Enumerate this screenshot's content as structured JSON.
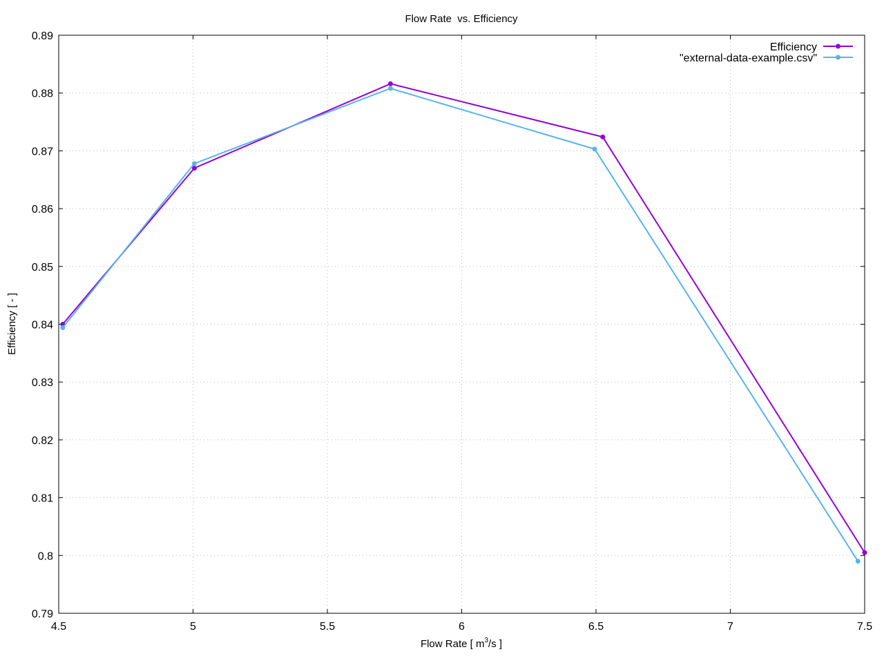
{
  "chart_data": {
    "type": "line",
    "title": "Flow Rate  vs. Efficiency",
    "xlabel": "Flow Rate [ m",
    "xlabel_sup": "3",
    "xlabel_end": "/s ]",
    "ylabel": "Efficiency [ - ]",
    "xlim": [
      4.5,
      7.5
    ],
    "ylim": [
      0.79,
      0.89
    ],
    "x_ticks": [
      "4.5",
      "5",
      "5.5",
      "6",
      "6.5",
      "7",
      "7.5"
    ],
    "y_ticks": [
      "0.79",
      "0.8",
      "0.81",
      "0.82",
      "0.83",
      "0.84",
      "0.85",
      "0.86",
      "0.87",
      "0.88",
      "0.89"
    ],
    "grid": true,
    "legend_position": "top-right",
    "series": [
      {
        "name": "Efficiency",
        "color": "#9400d3",
        "x": [
          4.515,
          5.005,
          5.735,
          6.525,
          7.5
        ],
        "y": [
          0.84,
          0.867,
          0.8816,
          0.8724,
          0.8005
        ]
      },
      {
        "name": "\"external-data-example.csv\"",
        "color": "#56b4e9",
        "x": [
          4.515,
          5.005,
          5.735,
          6.495,
          7.475
        ],
        "y": [
          0.8394,
          0.8678,
          0.8808,
          0.8703,
          0.799
        ]
      }
    ]
  }
}
